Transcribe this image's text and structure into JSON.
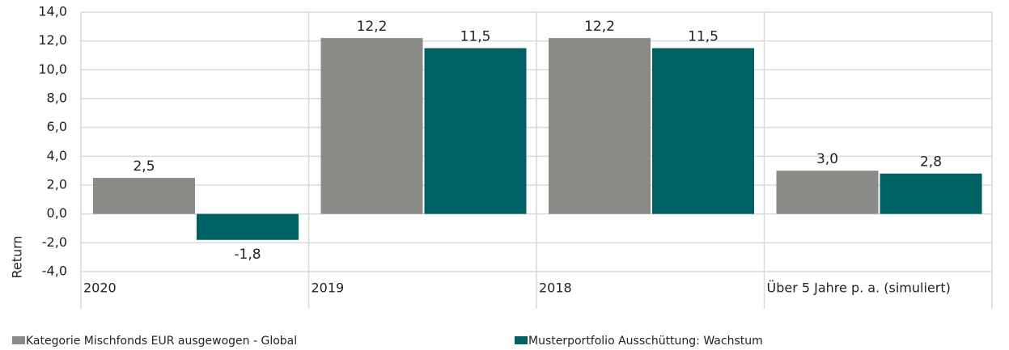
{
  "chart_data": {
    "type": "bar",
    "categories": [
      "2020",
      "2019",
      "2018",
      "Über 5 Jahre p. a. (simuliert)"
    ],
    "y_label": "Return",
    "series": [
      {
        "name": "Kategorie Mischfonds EUR ausgewogen - Global",
        "color": "#8a8a86",
        "values": [
          2.5,
          12.2,
          12.2,
          3.0
        ],
        "value_labels": [
          "2,5",
          "12,2",
          "12,2",
          "3,0"
        ]
      },
      {
        "name": "Musterportfolio Ausschüttung: Wachstum",
        "color": "#006165",
        "values": [
          -1.8,
          11.5,
          11.5,
          2.8
        ],
        "value_labels": [
          "-1,8",
          "11,5",
          "11,5",
          "2,8"
        ]
      }
    ],
    "ylim": [
      -4,
      14
    ],
    "yticks": [
      {
        "value": 14,
        "label": "14,0"
      },
      {
        "value": 12,
        "label": "12,0"
      },
      {
        "value": 10,
        "label": "10,0"
      },
      {
        "value": 8,
        "label": "8,0"
      },
      {
        "value": 6,
        "label": "6,0"
      },
      {
        "value": 4,
        "label": "4,0"
      },
      {
        "value": 2,
        "label": "2,0"
      },
      {
        "value": 0,
        "label": "0,0"
      },
      {
        "value": -2,
        "label": "-2,0"
      },
      {
        "value": -4,
        "label": "-4,0"
      }
    ],
    "grid": true
  }
}
